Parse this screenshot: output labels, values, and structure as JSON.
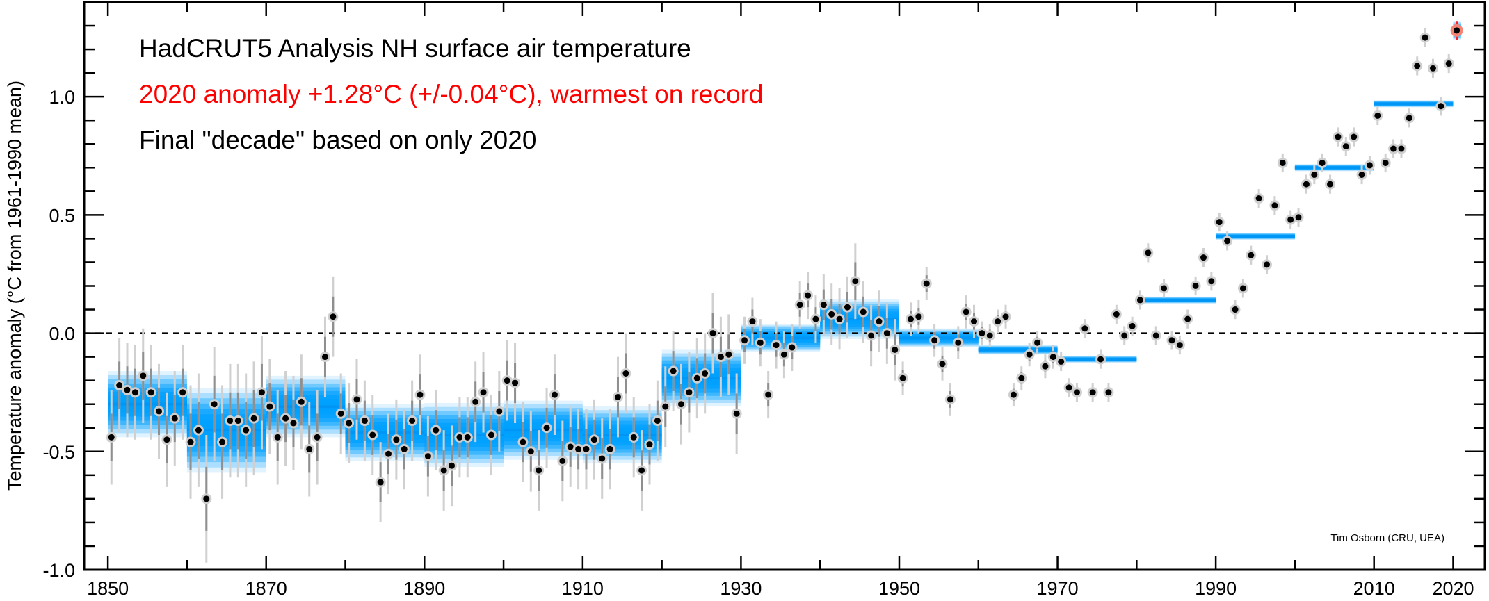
{
  "chart_data": {
    "type": "scatter",
    "title_lines": [
      {
        "text": "HadCRUT5 Analysis NH surface air temperature",
        "color": "#000000"
      },
      {
        "text": "2020 anomaly +1.28°C (+/-0.04°C), warmest on record",
        "color": "#ff0000"
      },
      {
        "text": "Final \"decade\" based on only 2020",
        "color": "#000000"
      }
    ],
    "xlabel": "",
    "ylabel": "Temperature anomaly (°C from 1961-1990 mean)",
    "credit": "Tim Osborn (CRU, UEA)",
    "xlim": [
      1847,
      2024
    ],
    "ylim": [
      -1.0,
      1.4
    ],
    "x_ticks_major": [
      1850,
      1870,
      1890,
      1910,
      1930,
      1950,
      1970,
      1990,
      2010,
      2020
    ],
    "x_tick_labels": [
      "1850",
      "1870",
      "1890",
      "1910",
      "1930",
      "1950",
      "1970",
      "1990",
      "2010",
      "2020"
    ],
    "x_ticks_minor_step": 10,
    "y_ticks_major": [
      -1.0,
      -0.5,
      0.0,
      0.5,
      1.0
    ],
    "y_tick_labels": [
      "-1.0",
      "-0.5",
      "0.0",
      "0.5",
      "1.0"
    ],
    "y_ticks_minor_step": 0.1,
    "reference_line": {
      "y": 0.0,
      "style": "dashed"
    },
    "colors": {
      "point": "#000000",
      "halo": "#cfcfcf",
      "errorbar_outer": "#d0d0d0",
      "errorbar_inner": "#8f8f8f",
      "decade_band": "#00a0ff",
      "highlight_halo": "#f58474",
      "highlight_bar": "#ff2020"
    },
    "annual": {
      "years": [
        1850,
        1851,
        1852,
        1853,
        1854,
        1855,
        1856,
        1857,
        1858,
        1859,
        1860,
        1861,
        1862,
        1863,
        1864,
        1865,
        1866,
        1867,
        1868,
        1869,
        1870,
        1871,
        1872,
        1873,
        1874,
        1875,
        1876,
        1877,
        1878,
        1879,
        1880,
        1881,
        1882,
        1883,
        1884,
        1885,
        1886,
        1887,
        1888,
        1889,
        1890,
        1891,
        1892,
        1893,
        1894,
        1895,
        1896,
        1897,
        1898,
        1899,
        1900,
        1901,
        1902,
        1903,
        1904,
        1905,
        1906,
        1907,
        1908,
        1909,
        1910,
        1911,
        1912,
        1913,
        1914,
        1915,
        1916,
        1917,
        1918,
        1919,
        1920,
        1921,
        1922,
        1923,
        1924,
        1925,
        1926,
        1927,
        1928,
        1929,
        1930,
        1931,
        1932,
        1933,
        1934,
        1935,
        1936,
        1937,
        1938,
        1939,
        1940,
        1941,
        1942,
        1943,
        1944,
        1945,
        1946,
        1947,
        1948,
        1949,
        1950,
        1951,
        1952,
        1953,
        1954,
        1955,
        1956,
        1957,
        1958,
        1959,
        1960,
        1961,
        1962,
        1963,
        1964,
        1965,
        1966,
        1967,
        1968,
        1969,
        1970,
        1971,
        1972,
        1973,
        1974,
        1975,
        1976,
        1977,
        1978,
        1979,
        1980,
        1981,
        1982,
        1983,
        1984,
        1985,
        1986,
        1987,
        1988,
        1989,
        1990,
        1991,
        1992,
        1993,
        1994,
        1995,
        1996,
        1997,
        1998,
        1999,
        2000,
        2001,
        2002,
        2003,
        2004,
        2005,
        2006,
        2007,
        2008,
        2009,
        2010,
        2011,
        2012,
        2013,
        2014,
        2015,
        2016,
        2017,
        2018,
        2019,
        2020
      ],
      "values": [
        -0.44,
        -0.22,
        -0.24,
        -0.25,
        -0.18,
        -0.25,
        -0.33,
        -0.45,
        -0.36,
        -0.25,
        -0.46,
        -0.41,
        -0.7,
        -0.3,
        -0.46,
        -0.37,
        -0.37,
        -0.41,
        -0.36,
        -0.25,
        -0.31,
        -0.44,
        -0.36,
        -0.38,
        -0.29,
        -0.49,
        -0.44,
        -0.1,
        0.07,
        -0.34,
        -0.38,
        -0.28,
        -0.37,
        -0.43,
        -0.63,
        -0.51,
        -0.45,
        -0.49,
        -0.37,
        -0.26,
        -0.52,
        -0.41,
        -0.58,
        -0.56,
        -0.44,
        -0.44,
        -0.29,
        -0.25,
        -0.43,
        -0.33,
        -0.2,
        -0.21,
        -0.46,
        -0.5,
        -0.58,
        -0.4,
        -0.26,
        -0.54,
        -0.48,
        -0.49,
        -0.49,
        -0.45,
        -0.53,
        -0.49,
        -0.27,
        -0.17,
        -0.44,
        -0.58,
        -0.47,
        -0.37,
        -0.31,
        -0.16,
        -0.3,
        -0.25,
        -0.19,
        -0.17,
        0.0,
        -0.1,
        -0.09,
        -0.34,
        -0.03,
        0.05,
        -0.04,
        -0.26,
        -0.05,
        -0.09,
        -0.06,
        0.12,
        0.16,
        0.06,
        0.12,
        0.08,
        0.06,
        0.11,
        0.22,
        0.09,
        -0.01,
        0.05,
        0.0,
        -0.07,
        -0.19,
        0.06,
        0.07,
        0.21,
        -0.03,
        -0.13,
        -0.28,
        -0.04,
        0.09,
        0.05,
        0.0,
        -0.01,
        0.05,
        0.07,
        -0.26,
        -0.19,
        -0.09,
        -0.04,
        -0.14,
        -0.1,
        -0.12,
        -0.23,
        -0.25,
        0.02,
        -0.25,
        -0.11,
        -0.25,
        0.08,
        -0.01,
        0.03,
        0.14,
        0.34,
        -0.01,
        0.19,
        -0.03,
        -0.05,
        0.06,
        0.2,
        0.32,
        0.22,
        0.47,
        0.39,
        0.1,
        0.19,
        0.33,
        0.57,
        0.29,
        0.54,
        0.72,
        0.48,
        0.49,
        0.63,
        0.67,
        0.72,
        0.63,
        0.83,
        0.79,
        0.83,
        0.67,
        0.71,
        0.92,
        0.72,
        0.78,
        0.78,
        0.91,
        1.13,
        1.25,
        1.12,
        0.96,
        1.14,
        1.28
      ],
      "uncertainty": [
        0.2,
        0.2,
        0.2,
        0.2,
        0.2,
        0.2,
        0.2,
        0.2,
        0.2,
        0.2,
        0.24,
        0.24,
        0.27,
        0.24,
        0.24,
        0.24,
        0.24,
        0.24,
        0.24,
        0.24,
        0.2,
        0.2,
        0.2,
        0.2,
        0.2,
        0.2,
        0.2,
        0.17,
        0.17,
        0.17,
        0.17,
        0.17,
        0.17,
        0.17,
        0.17,
        0.17,
        0.17,
        0.17,
        0.17,
        0.17,
        0.17,
        0.17,
        0.17,
        0.17,
        0.17,
        0.17,
        0.17,
        0.17,
        0.17,
        0.17,
        0.17,
        0.17,
        0.17,
        0.17,
        0.17,
        0.17,
        0.17,
        0.17,
        0.17,
        0.17,
        0.17,
        0.17,
        0.17,
        0.17,
        0.17,
        0.17,
        0.17,
        0.17,
        0.17,
        0.17,
        0.17,
        0.17,
        0.17,
        0.17,
        0.17,
        0.17,
        0.17,
        0.17,
        0.17,
        0.17,
        0.1,
        0.1,
        0.1,
        0.1,
        0.1,
        0.1,
        0.1,
        0.1,
        0.1,
        0.1,
        0.13,
        0.13,
        0.13,
        0.13,
        0.16,
        0.13,
        0.13,
        0.13,
        0.13,
        0.13,
        0.07,
        0.07,
        0.07,
        0.07,
        0.07,
        0.07,
        0.07,
        0.07,
        0.07,
        0.07,
        0.05,
        0.05,
        0.05,
        0.05,
        0.05,
        0.05,
        0.05,
        0.05,
        0.05,
        0.05,
        0.04,
        0.04,
        0.04,
        0.04,
        0.04,
        0.04,
        0.04,
        0.04,
        0.04,
        0.04,
        0.04,
        0.04,
        0.04,
        0.04,
        0.04,
        0.04,
        0.04,
        0.04,
        0.04,
        0.04,
        0.04,
        0.04,
        0.04,
        0.04,
        0.04,
        0.04,
        0.04,
        0.04,
        0.04,
        0.04,
        0.04,
        0.04,
        0.04,
        0.04,
        0.04,
        0.04,
        0.04,
        0.04,
        0.04,
        0.04,
        0.04,
        0.04,
        0.04,
        0.04,
        0.04,
        0.04,
        0.04,
        0.04,
        0.04,
        0.04,
        0.04
      ]
    },
    "decadal": {
      "start_years": [
        1850,
        1860,
        1870,
        1880,
        1890,
        1900,
        1910,
        1920,
        1930,
        1940,
        1950,
        1960,
        1970,
        1980,
        1990,
        2000,
        2010,
        2020
      ],
      "end_years": [
        1860,
        1870,
        1880,
        1890,
        1900,
        1910,
        1920,
        1930,
        1940,
        1950,
        1960,
        1970,
        1980,
        1990,
        2000,
        2010,
        2020,
        2021
      ],
      "values": [
        -0.3,
        -0.41,
        -0.31,
        -0.42,
        -0.43,
        -0.41,
        -0.43,
        -0.19,
        -0.02,
        0.06,
        -0.02,
        -0.07,
        -0.11,
        0.14,
        0.41,
        0.7,
        0.97,
        1.28
      ],
      "uncertainty": [
        0.14,
        0.18,
        0.13,
        0.12,
        0.135,
        0.125,
        0.12,
        0.12,
        0.06,
        0.085,
        0.04,
        0.02,
        0.015,
        0.015,
        0.015,
        0.015,
        0.015,
        0.04
      ]
    },
    "highlight": {
      "year": 2020,
      "value": 1.28,
      "uncertainty": 0.04
    }
  }
}
